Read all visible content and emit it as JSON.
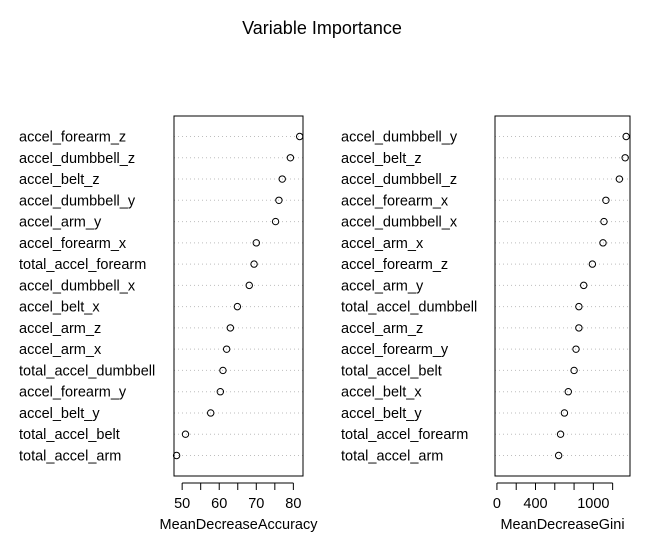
{
  "title": "Variable Importance",
  "chart_data": [
    {
      "type": "scatter",
      "style": "dotchart",
      "xlabel": "MeanDecreaseAccuracy",
      "xlim": [
        47.8,
        82.6
      ],
      "xticks": [
        50,
        60,
        70,
        80
      ],
      "minor_ticks": [
        55,
        65,
        75
      ],
      "grid": "dotted-horizontal",
      "categories": [
        "accel_forearm_z",
        "accel_dumbbell_z",
        "accel_belt_z",
        "accel_dumbbell_y",
        "accel_arm_y",
        "accel_forearm_x",
        "total_accel_forearm",
        "accel_dumbbell_x",
        "accel_belt_x",
        "accel_arm_z",
        "accel_arm_x",
        "total_accel_dumbbell",
        "accel_forearm_y",
        "accel_belt_y",
        "total_accel_belt",
        "total_accel_arm"
      ],
      "values": [
        81.7,
        79.2,
        77.0,
        76.1,
        75.2,
        70.0,
        69.4,
        68.1,
        64.9,
        63.0,
        62.0,
        61.0,
        60.3,
        57.7,
        50.9,
        48.5
      ]
    },
    {
      "type": "scatter",
      "style": "dotchart",
      "xlabel": "MeanDecreaseGini",
      "xlim": [
        -20,
        1380
      ],
      "xticks": [
        0,
        400,
        1000
      ],
      "minor_ticks": [
        200,
        600,
        800,
        1200
      ],
      "grid": "dotted-horizontal",
      "categories": [
        "accel_dumbbell_y",
        "accel_belt_z",
        "accel_dumbbell_z",
        "accel_forearm_x",
        "accel_dumbbell_x",
        "accel_arm_x",
        "accel_forearm_z",
        "accel_arm_y",
        "total_accel_dumbbell",
        "accel_arm_z",
        "accel_forearm_y",
        "total_accel_belt",
        "accel_belt_x",
        "accel_belt_y",
        "total_accel_forearm",
        "total_accel_arm"
      ],
      "values": [
        1340,
        1330,
        1270,
        1130,
        1110,
        1100,
        990,
        900,
        850,
        850,
        820,
        800,
        740,
        700,
        660,
        640
      ]
    }
  ]
}
